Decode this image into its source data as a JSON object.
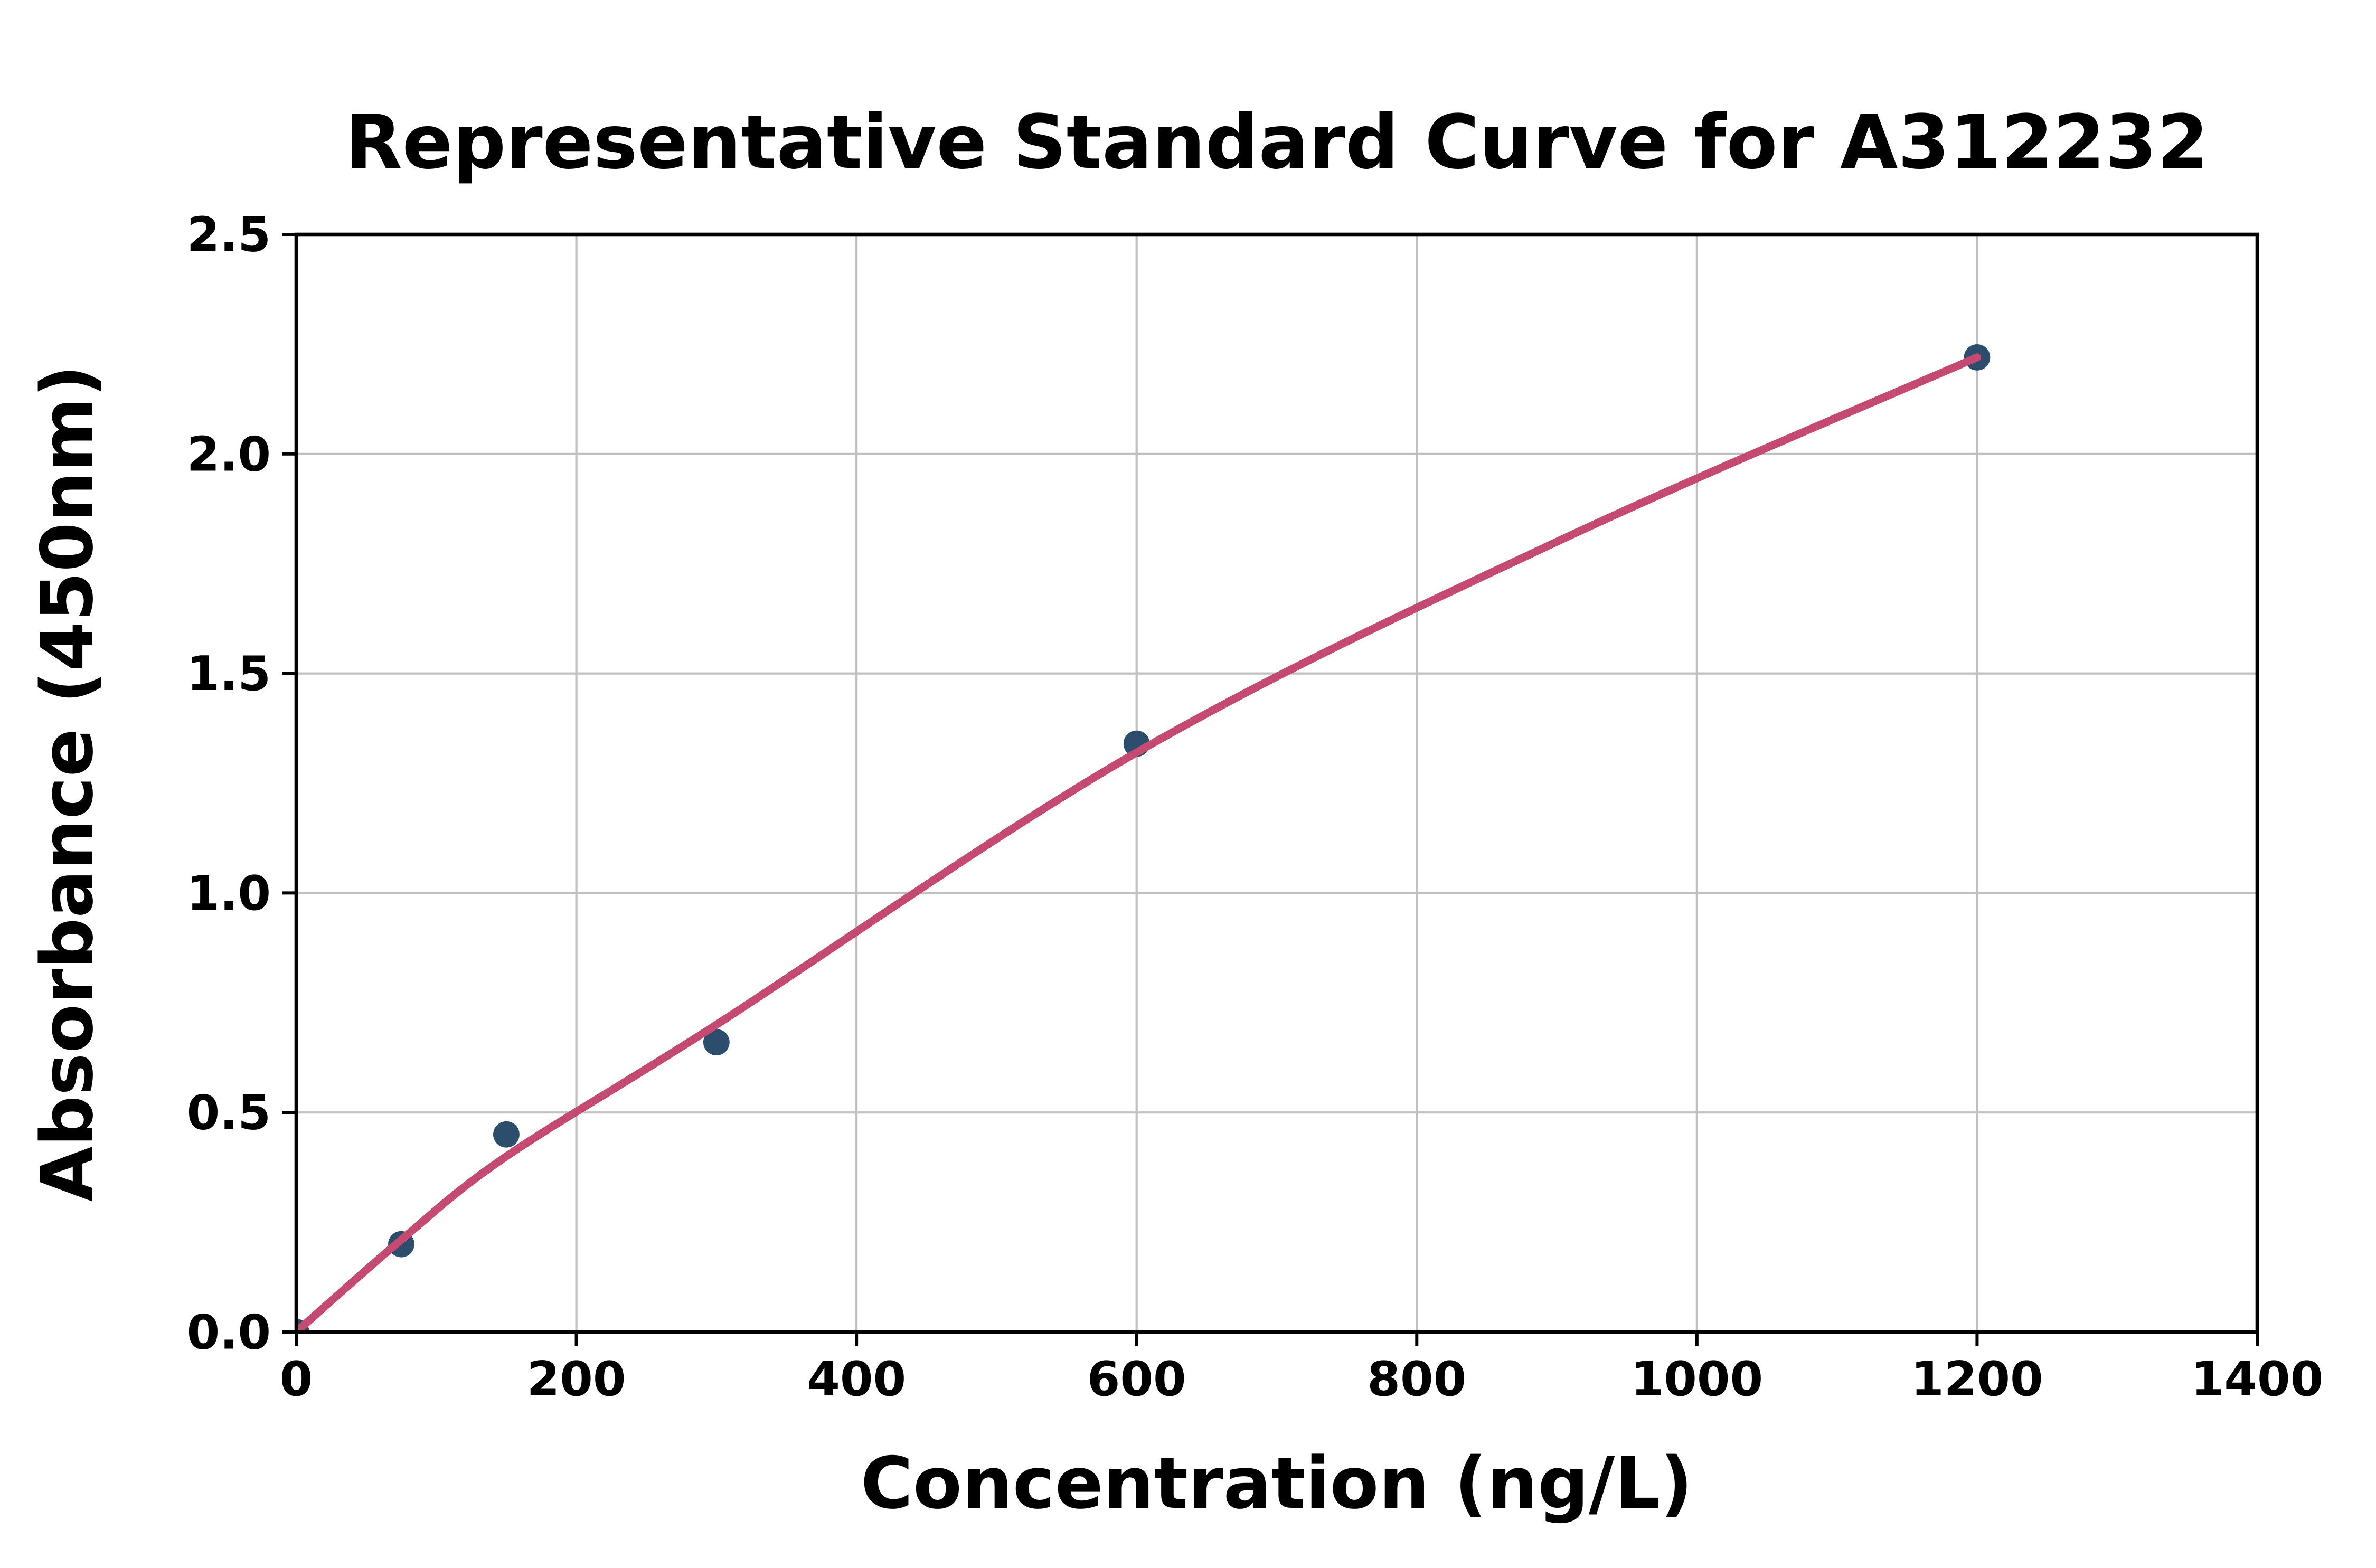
{
  "chart_data": {
    "type": "scatter",
    "title": "Representative Standard Curve for A312232",
    "xlabel": "Concentration (ng/L)",
    "ylabel": "Absorbance (450nm)",
    "xlim": [
      0,
      1400
    ],
    "ylim": [
      0,
      2.5
    ],
    "x_ticks": [
      0,
      200,
      400,
      600,
      800,
      1000,
      1200,
      1400
    ],
    "y_ticks": [
      "0.0",
      "0.5",
      "1.0",
      "1.5",
      "2.0",
      "2.5"
    ],
    "grid": true,
    "legend_position": "none",
    "colors": {
      "point": "#2d4d6d",
      "curve": "#c44a72",
      "grid": "#c0c0c0",
      "axis": "#000000",
      "background": "#ffffff"
    },
    "series": [
      {
        "name": "standard-points",
        "type": "scatter",
        "color": "#2d4d6d",
        "points": [
          [
            0,
            0.0
          ],
          [
            75,
            0.2
          ],
          [
            150,
            0.45
          ],
          [
            300,
            0.66
          ],
          [
            600,
            1.34
          ],
          [
            1200,
            2.22
          ]
        ]
      },
      {
        "name": "fitted-curve",
        "type": "line",
        "color": "#c44a72",
        "points": [
          [
            0,
            0.0
          ],
          [
            75,
            0.21
          ],
          [
            150,
            0.4
          ],
          [
            300,
            0.7
          ],
          [
            600,
            1.32
          ],
          [
            900,
            1.8
          ],
          [
            1200,
            2.22
          ]
        ]
      }
    ]
  }
}
